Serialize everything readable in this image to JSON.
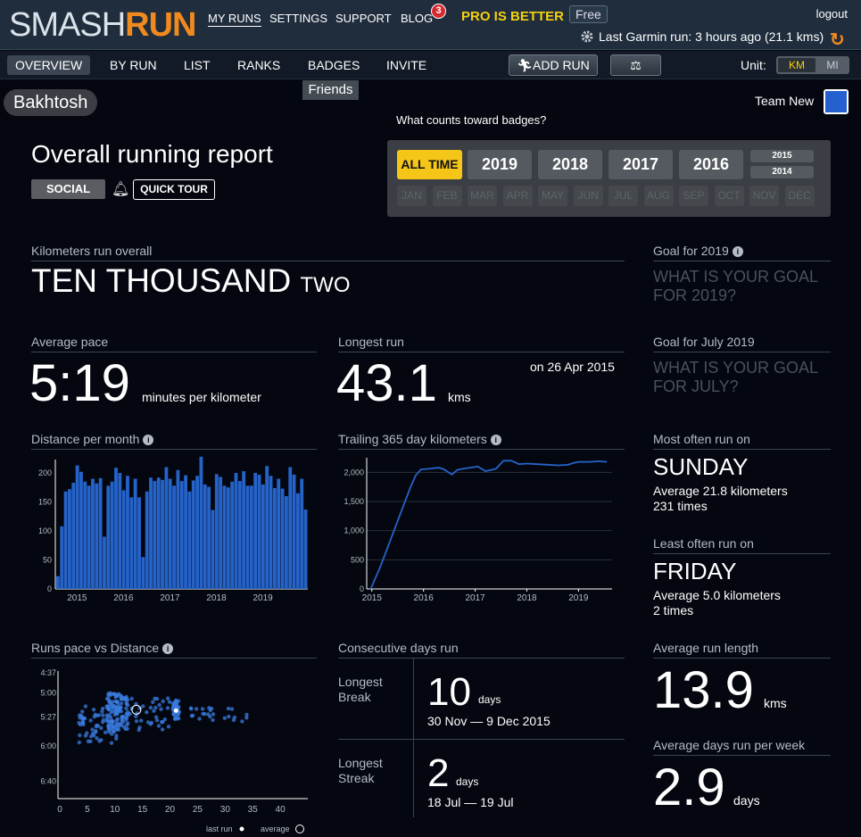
{
  "nav": {
    "logo_smash": "SMASH",
    "logo_run": "RUN",
    "links": [
      "MY RUNS",
      "SETTINGS",
      "SUPPORT",
      "BLOG"
    ],
    "blog_badge": "3",
    "pro": "PRO IS BETTER",
    "plan": "Free",
    "logout": "logout",
    "garmin_status": "Last Garmin run: 3 hours ago (21.1 kms)"
  },
  "subnav": {
    "tabs": [
      "OVERVIEW",
      "BY RUN",
      "LIST",
      "RANKS",
      "BADGES",
      "INVITE"
    ],
    "add_run": "ADD RUN",
    "unit_label": "Unit:",
    "unit_km": "KM",
    "unit_mi": "MI",
    "friends_tooltip": "Friends"
  },
  "user": {
    "name": "Bakhtosh",
    "team": "Team New"
  },
  "report": {
    "title": "Overall running report",
    "social": "SOCIAL",
    "quick_tour": "QUICK TOUR",
    "badges_question": "What counts toward badges?"
  },
  "period": {
    "years": [
      "ALL TIME",
      "2019",
      "2018",
      "2017",
      "2016"
    ],
    "small_years": [
      "2015",
      "2014"
    ],
    "months": [
      "JAN",
      "FEB",
      "MAR",
      "APR",
      "MAY",
      "JUN",
      "JUL",
      "AUG",
      "SEP",
      "OCT",
      "NOV",
      "DEC"
    ],
    "selected": "ALL TIME"
  },
  "stats": {
    "km_label": "Kilometers run overall",
    "km_words": "TEN THOUSAND",
    "km_words_small": "TWO",
    "goal_year_label": "Goal for 2019",
    "goal_year_q1": "WHAT IS YOUR GOAL",
    "goal_year_q2": "FOR 2019?",
    "goal_month_label": "Goal for July 2019",
    "goal_month_q1": "WHAT IS YOUR GOAL",
    "goal_month_q2": "FOR JULY?",
    "pace_label": "Average pace",
    "pace_value": "5:19",
    "pace_unit": "minutes per kilometer",
    "longest_label": "Longest run",
    "longest_value": "43.1",
    "longest_unit": "kms",
    "longest_date": "on 26 Apr 2015",
    "dist_month_label": "Distance per month",
    "trailing_label": "Trailing 365 day kilometers",
    "most_label": "Most often run on",
    "most_day": "SUNDAY",
    "most_avg": "Average 21.8 kilometers",
    "most_times": "231 times",
    "least_label": "Least often run on",
    "least_day": "FRIDAY",
    "least_avg": "Average 5.0 kilometers",
    "least_times": "2 times",
    "pace_dist_label": "Runs pace vs Distance",
    "consec_label": "Consecutive days run",
    "break_label1": "Longest",
    "break_label2": "Break",
    "break_value": "10",
    "break_unit": "days",
    "break_dates": "30 Nov — 9 Dec 2015",
    "streak_label1": "Longest",
    "streak_label2": "Streak",
    "streak_value": "2",
    "streak_unit": "days",
    "streak_dates": "18 Jul — 19 Jul",
    "avg_len_label": "Average run length",
    "avg_len_value": "13.9",
    "avg_len_unit": "kms",
    "avg_week_label": "Average days run per week",
    "avg_week_value": "2.9",
    "avg_week_unit": "days",
    "legend_last": "last run",
    "legend_avg": "average"
  },
  "colors": {
    "accent_orange": "#f08a1e",
    "pro_yellow": "#f5d10f",
    "bar_blue": "#2563c9",
    "background": "#04070f"
  },
  "chart_data": [
    {
      "type": "bar",
      "title": "Distance per month",
      "x_ticks": [
        "2015",
        "2016",
        "2017",
        "2018",
        "2019"
      ],
      "y_ticks": [
        0,
        50,
        100,
        150,
        200
      ],
      "ylim": [
        0,
        220
      ],
      "values": [
        22,
        108,
        168,
        172,
        183,
        213,
        202,
        185,
        178,
        190,
        182,
        191,
        90,
        178,
        185,
        209,
        200,
        170,
        195,
        158,
        190,
        158,
        55,
        168,
        192,
        186,
        192,
        188,
        210,
        190,
        178,
        205,
        186,
        196,
        168,
        187,
        195,
        228,
        180,
        176,
        136,
        198,
        193,
        178,
        175,
        185,
        200,
        186,
        203,
        178,
        178,
        200,
        197,
        180,
        212,
        195,
        174,
        190,
        173,
        160,
        210,
        197,
        165,
        190,
        137
      ]
    },
    {
      "type": "line",
      "title": "Trailing 365 day kilometers",
      "x_ticks": [
        "2015",
        "2016",
        "2017",
        "2018",
        "2019"
      ],
      "y_ticks": [
        0,
        500,
        1000,
        1500,
        2000
      ],
      "ylim": [
        0,
        2250
      ],
      "x": [
        2014.98,
        2015.05,
        2015.15,
        2015.3,
        2015.45,
        2015.6,
        2015.75,
        2015.85,
        2015.95,
        2016.1,
        2016.3,
        2016.4,
        2016.55,
        2016.65,
        2016.75,
        2016.9,
        2017.05,
        2017.2,
        2017.4,
        2017.55,
        2017.7,
        2017.85,
        2018.0,
        2018.2,
        2018.4,
        2018.6,
        2018.8,
        2018.9,
        2019.0,
        2019.2,
        2019.4,
        2019.55
      ],
      "y": [
        0,
        150,
        350,
        700,
        1050,
        1400,
        1750,
        1950,
        2050,
        2060,
        2080,
        2050,
        1960,
        2040,
        2060,
        2080,
        2100,
        2020,
        2060,
        2200,
        2200,
        2140,
        2150,
        2140,
        2130,
        2120,
        2130,
        2160,
        2180,
        2180,
        2190,
        2180
      ]
    },
    {
      "type": "scatter",
      "title": "Runs pace vs Distance",
      "x_ticks": [
        0,
        5,
        10,
        15,
        20,
        25,
        30,
        35,
        40
      ],
      "y_ticks": [
        "4:37",
        "5:00",
        "5:27",
        "6:00",
        "6:40"
      ],
      "xlim": [
        0,
        45
      ],
      "ylim": [
        "4:37",
        "7:00"
      ],
      "last_run": {
        "x": 21.1,
        "y": "5:20"
      },
      "average": {
        "x": 13.9,
        "y": "5:19"
      }
    }
  ]
}
